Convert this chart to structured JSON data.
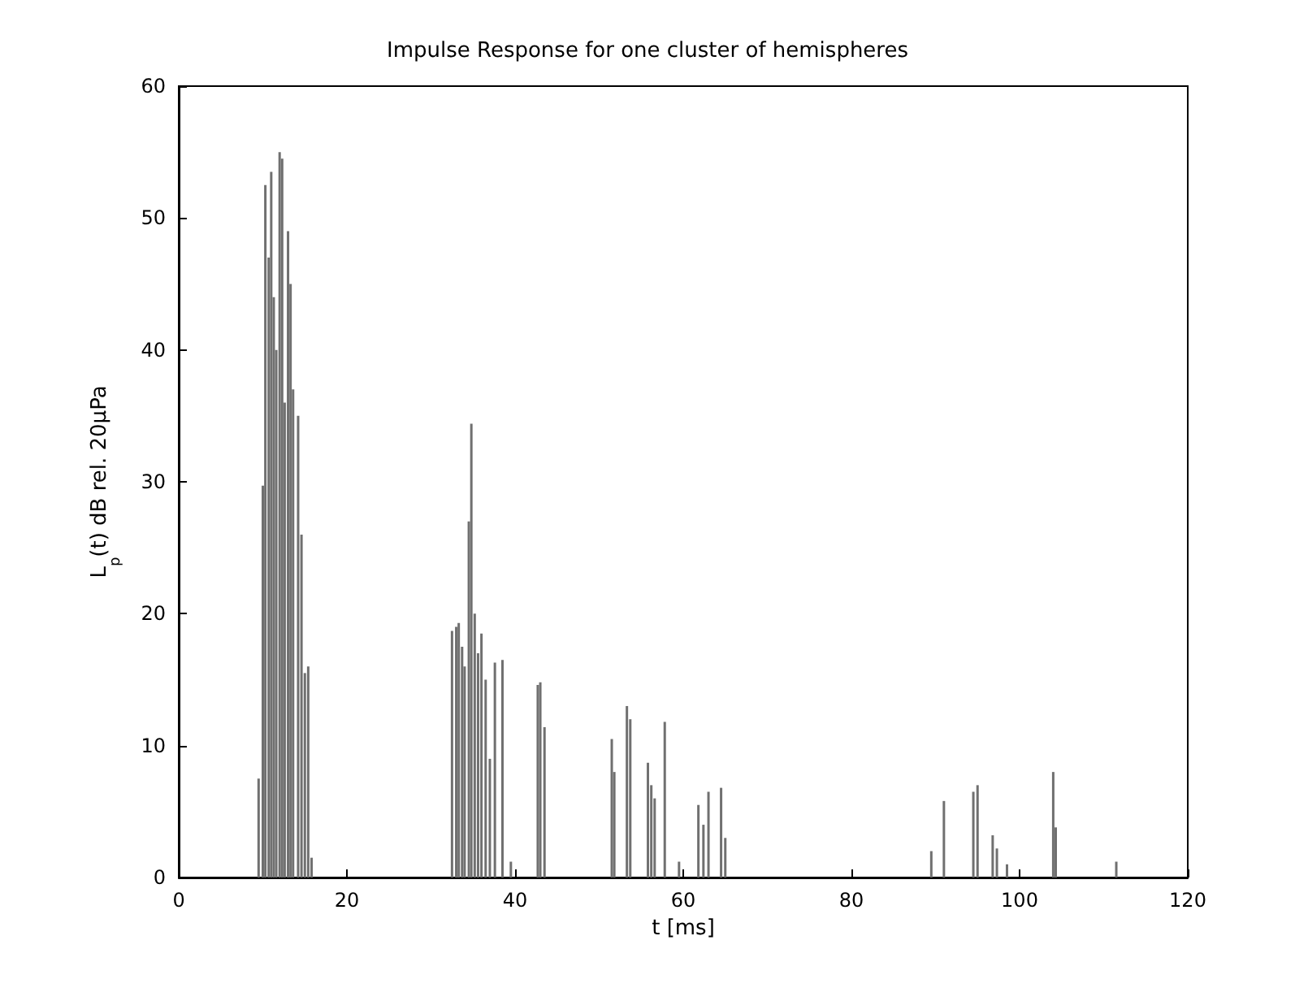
{
  "chart_data": {
    "type": "bar",
    "title": "Impulse Response for one cluster of hemispheres",
    "xlabel": "t [ms]",
    "ylabel": "L$_{p}$(t) dB rel. 20μPa",
    "x": [
      9.5,
      10,
      10.3,
      10.7,
      11,
      11.3,
      11.6,
      12,
      12.3,
      12.6,
      13,
      13.3,
      13.6,
      14.2,
      14.6,
      15,
      15.4,
      15.8,
      32.5,
      33,
      33.3,
      33.7,
      34,
      34.5,
      34.8,
      35.2,
      35.6,
      36,
      36.5,
      37,
      37.6,
      38.5,
      39.5,
      42.7,
      43,
      43.5,
      51.5,
      51.8,
      53.3,
      53.7,
      55.8,
      56.2,
      56.6,
      57.8,
      59.5,
      61.8,
      62.4,
      63,
      64.5,
      65,
      89.5,
      91,
      94.5,
      95,
      96.8,
      97.3,
      98.5,
      104,
      104.3,
      111.5
    ],
    "values": [
      7.5,
      29.7,
      52.5,
      47,
      53.5,
      44,
      40,
      55,
      54.5,
      36,
      49,
      45,
      37,
      35,
      26,
      15.5,
      16,
      1.5,
      18.7,
      19,
      19.3,
      17.5,
      16,
      27,
      34.4,
      20,
      17,
      18.5,
      15,
      9,
      16.3,
      16.5,
      1.2,
      14.6,
      14.8,
      11.4,
      10.5,
      8,
      13,
      12,
      8.7,
      7,
      6,
      11.8,
      1.2,
      5.5,
      4,
      6.5,
      6.8,
      3,
      2,
      5.8,
      6.5,
      7,
      3.2,
      2.2,
      1,
      8,
      3.8,
      1.2
    ],
    "color": "#707070",
    "xlim": [
      0,
      120
    ],
    "xticks": [
      0,
      20,
      40,
      60,
      80,
      100,
      120
    ],
    "ylim": [
      0,
      60
    ],
    "yticks": [
      0,
      10,
      20,
      30,
      40,
      50,
      60
    ],
    "grid": false
  }
}
